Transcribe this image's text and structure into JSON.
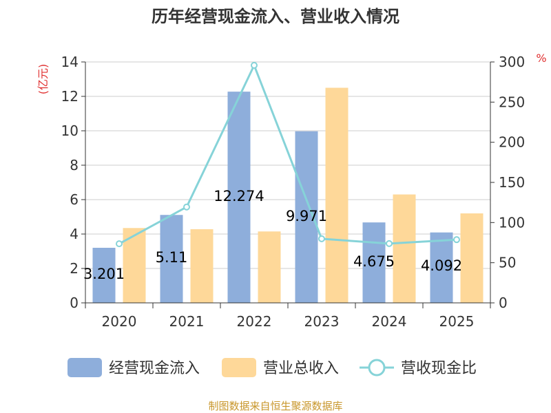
{
  "chart_data": {
    "type": "bar",
    "title": "历年经营现金流入、营业收入情况",
    "categories": [
      "2020",
      "2021",
      "2022",
      "2023",
      "2024",
      "2025"
    ],
    "series": [
      {
        "name": "经营现金流入",
        "type": "bar",
        "axis": "left",
        "color": "#8eaedb",
        "values": [
          3.201,
          5.11,
          12.274,
          9.971,
          4.675,
          4.092
        ],
        "labels": [
          "3.201",
          "5.11",
          "12.274",
          "9.971",
          "4.675",
          "4.092"
        ]
      },
      {
        "name": "营业总收入",
        "type": "bar",
        "axis": "left",
        "color": "#fed899",
        "values": [
          4.35,
          4.28,
          4.15,
          12.5,
          6.3,
          5.2
        ]
      },
      {
        "name": "营收现金比",
        "type": "line",
        "axis": "right",
        "color": "#86d3d8",
        "values": [
          73.6,
          119.4,
          295.8,
          79.8,
          73.8,
          78.7
        ]
      }
    ],
    "left_axis": {
      "label": "(亿元)",
      "ylim": [
        0,
        14
      ],
      "ticks": [
        "0",
        "2",
        "4",
        "6",
        "8",
        "10",
        "12",
        "14"
      ]
    },
    "right_axis": {
      "label": "%",
      "ylim": [
        0,
        300
      ],
      "ticks": [
        "0",
        "50",
        "100",
        "150",
        "200",
        "250",
        "300"
      ]
    },
    "legend": [
      "经营现金流入",
      "营业总收入",
      "营收现金比"
    ],
    "grid": true
  },
  "source": "制图数据来自恒生聚源数据库"
}
